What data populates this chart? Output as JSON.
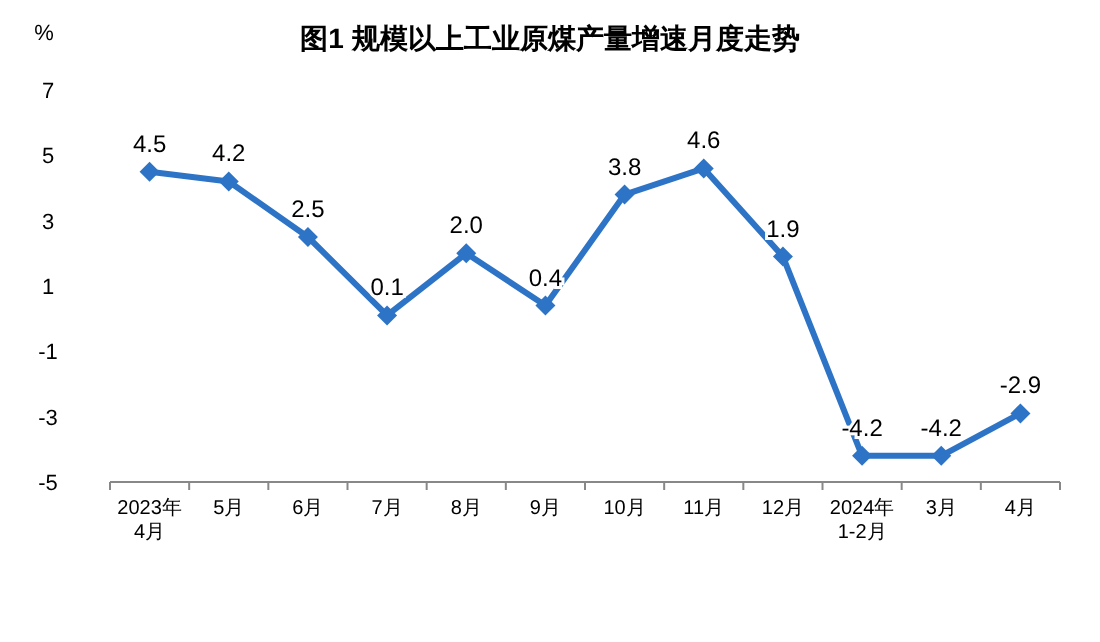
{
  "chart_data": {
    "type": "line",
    "title": "图1  规模以上工业原煤产量增速月度走势",
    "ylabel": "%",
    "categories": [
      "2023年\n4月",
      "5月",
      "6月",
      "7月",
      "8月",
      "9月",
      "10月",
      "11月",
      "12月",
      "2024年\n1-2月",
      "3月",
      "4月"
    ],
    "series": [
      {
        "color": "#2e74c6",
        "values": [
          4.5,
          4.2,
          2.5,
          0.1,
          2.0,
          0.4,
          3.8,
          4.6,
          1.9,
          -4.2,
          -4.2,
          -2.9
        ],
        "value_labels": [
          "4.5",
          "4.2",
          "2.5",
          "0.1",
          "2.0",
          "0.4",
          "3.8",
          "4.6",
          "1.9",
          "-4.2",
          "-4.2",
          "-2.9"
        ]
      }
    ],
    "ylim": [
      -5,
      7
    ],
    "yticks": [
      -5,
      -3,
      -1,
      1,
      3,
      5,
      7
    ],
    "marker": "diamond",
    "line_style": "solid"
  }
}
